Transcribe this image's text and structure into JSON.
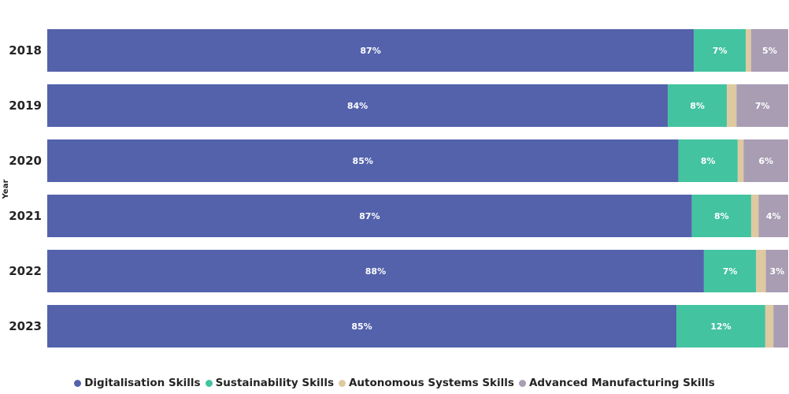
{
  "chart_data": {
    "type": "bar",
    "orientation": "horizontal",
    "stacked": "100%",
    "categories": [
      "2018",
      "2019",
      "2020",
      "2021",
      "2022",
      "2023"
    ],
    "ylabel": "Year",
    "xlim": [
      0,
      100
    ],
    "grid": false,
    "legend_position": "bottom-center",
    "series": [
      {
        "name": "Digitalisation Skills",
        "color": "#5462AC",
        "values": [
          87,
          84,
          85,
          87,
          88,
          85
        ],
        "labels": [
          "87%",
          "84%",
          "85%",
          "87%",
          "88%",
          "85%"
        ]
      },
      {
        "name": "Sustainability Skills",
        "color": "#43C3A0",
        "values": [
          7,
          8,
          8,
          8,
          7,
          12
        ],
        "labels": [
          "7%",
          "8%",
          "8%",
          "8%",
          "7%",
          "12%"
        ]
      },
      {
        "name": "Autonomous Systems Skills",
        "color": "#DEC9A1",
        "values": [
          0.7,
          1.3,
          0.8,
          1.0,
          1.3,
          1.1
        ],
        "labels": [
          "",
          "",
          "",
          "",
          "",
          ""
        ]
      },
      {
        "name": "Advanced Manufacturing Skills",
        "color": "#A89DB3",
        "values": [
          5,
          7,
          6,
          4,
          3,
          2
        ],
        "labels": [
          "5%",
          "7%",
          "6%",
          "4%",
          "3%",
          ""
        ]
      }
    ]
  }
}
